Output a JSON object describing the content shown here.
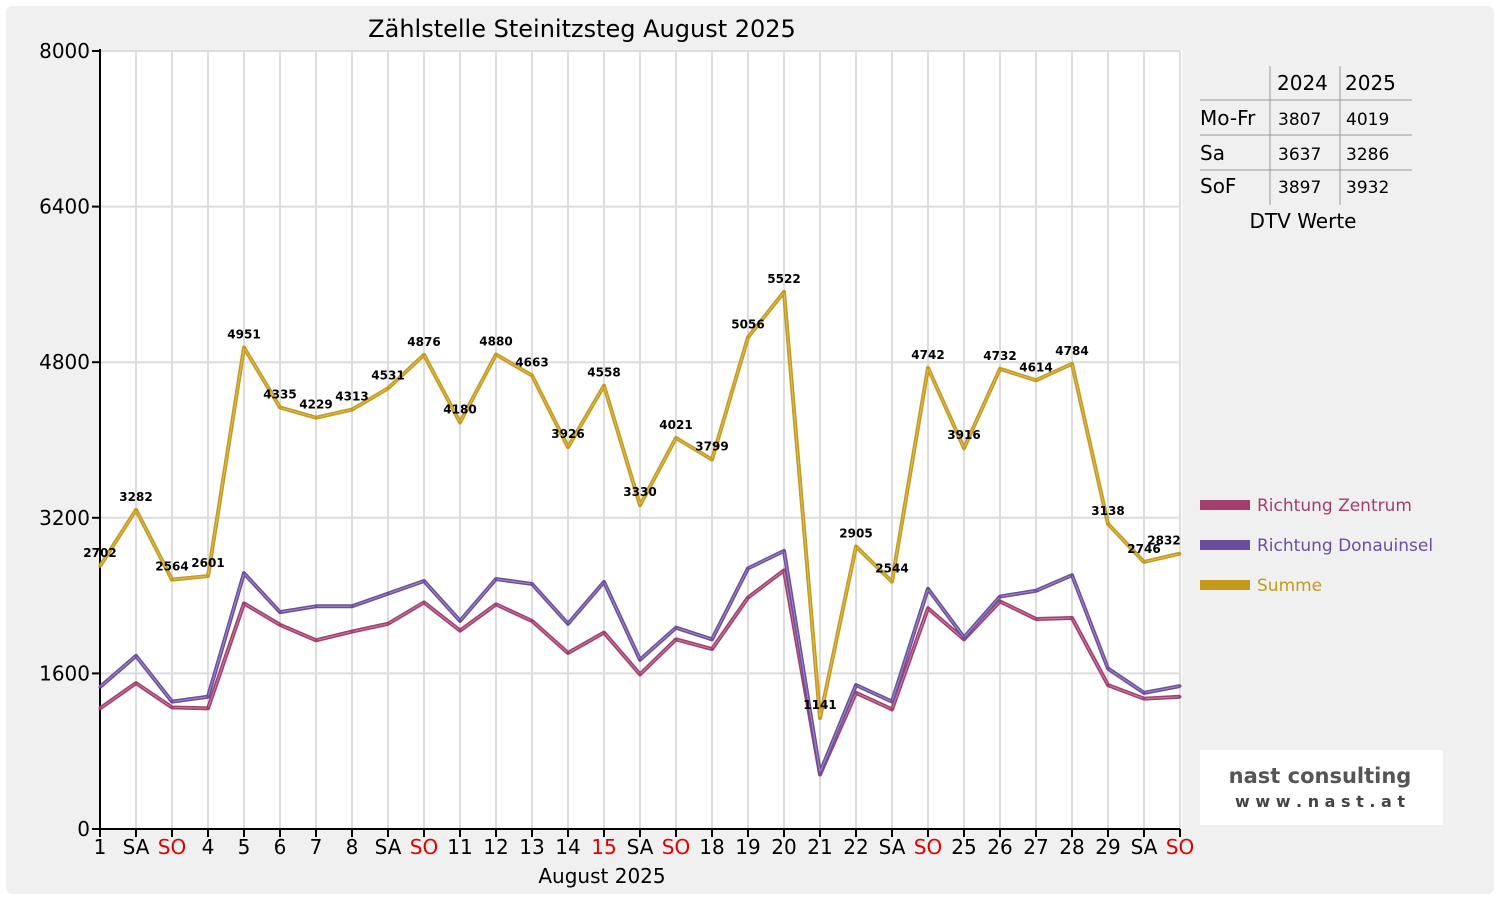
{
  "chart_data": {
    "type": "line",
    "title": "Zählstelle Steinitzsteg August 2025",
    "xlabel": "August 2025",
    "ylabel": "",
    "ylim": [
      0,
      8000
    ],
    "yticks": [
      "0",
      "1600",
      "3200",
      "4800",
      "6400",
      "8000"
    ],
    "grid": true,
    "legend_position": "right",
    "categories": [
      "1",
      "SA",
      "SO",
      "4",
      "5",
      "6",
      "7",
      "8",
      "SA",
      "SO",
      "11",
      "12",
      "13",
      "14",
      "15",
      "SA",
      "SO",
      "18",
      "19",
      "20",
      "21",
      "22",
      "SA",
      "SO",
      "25",
      "26",
      "27",
      "28",
      "29",
      "SA",
      "SO"
    ],
    "red_categories": [
      2,
      9,
      14,
      16,
      23,
      30
    ],
    "series": [
      {
        "name": "Richtung Zentrum",
        "color": "#a33d6e",
        "values": [
          1240,
          1500,
          1250,
          1240,
          2320,
          2100,
          1940,
          2030,
          2110,
          2330,
          2040,
          2310,
          2140,
          1810,
          2020,
          1590,
          1950,
          1850,
          2380,
          2660,
          560,
          1400,
          1230,
          2270,
          1950,
          2340,
          2160,
          2170,
          1480,
          1340,
          1360
        ],
        "labels": null
      },
      {
        "name": "Richtung Donauinsel",
        "color": "#6b4f9e",
        "values": [
          1460,
          1780,
          1310,
          1360,
          2630,
          2230,
          2290,
          2290,
          2420,
          2550,
          2140,
          2570,
          2520,
          2110,
          2540,
          1740,
          2070,
          1950,
          2680,
          2860,
          580,
          1480,
          1310,
          2470,
          1970,
          2390,
          2450,
          2610,
          1650,
          1400,
          1470
        ],
        "labels": null
      },
      {
        "name": "Summe",
        "color": "#c59a1a",
        "values": [
          2702,
          3282,
          2564,
          2601,
          4951,
          4335,
          4229,
          4313,
          4531,
          4876,
          4180,
          4880,
          4663,
          3926,
          4558,
          3330,
          4021,
          3799,
          5056,
          5522,
          1141,
          2905,
          2544,
          4742,
          3916,
          4732,
          4614,
          4784,
          3138,
          2746,
          2832
        ],
        "labels": [
          "2702",
          "3282",
          "2564",
          "2601",
          "4951",
          "4335",
          "4229",
          "4313",
          "4531",
          "4876",
          "4180",
          "4880",
          "4663",
          "3926",
          "4558",
          "3330",
          "4021",
          "3799",
          "5056",
          "5522",
          "1141",
          "2905",
          "2544",
          "4742",
          "3916",
          "4732",
          "4614",
          "4784",
          "3138",
          "2746",
          "2832"
        ]
      }
    ]
  },
  "dtv_table": {
    "caption": "DTV Werte",
    "headers": [
      "",
      "2024",
      "2025"
    ],
    "rows": [
      [
        "Mo-Fr",
        "3807",
        "4019"
      ],
      [
        "Sa",
        "3637",
        "3286"
      ],
      [
        "SoF",
        "3897",
        "3932"
      ]
    ]
  },
  "logo": {
    "line1": "nast consulting",
    "line2": "w w w . n a s t . a t"
  },
  "colors": {
    "background": "#f0f0f0",
    "grid": "#dddddd",
    "weekend_red": "#e00000"
  }
}
